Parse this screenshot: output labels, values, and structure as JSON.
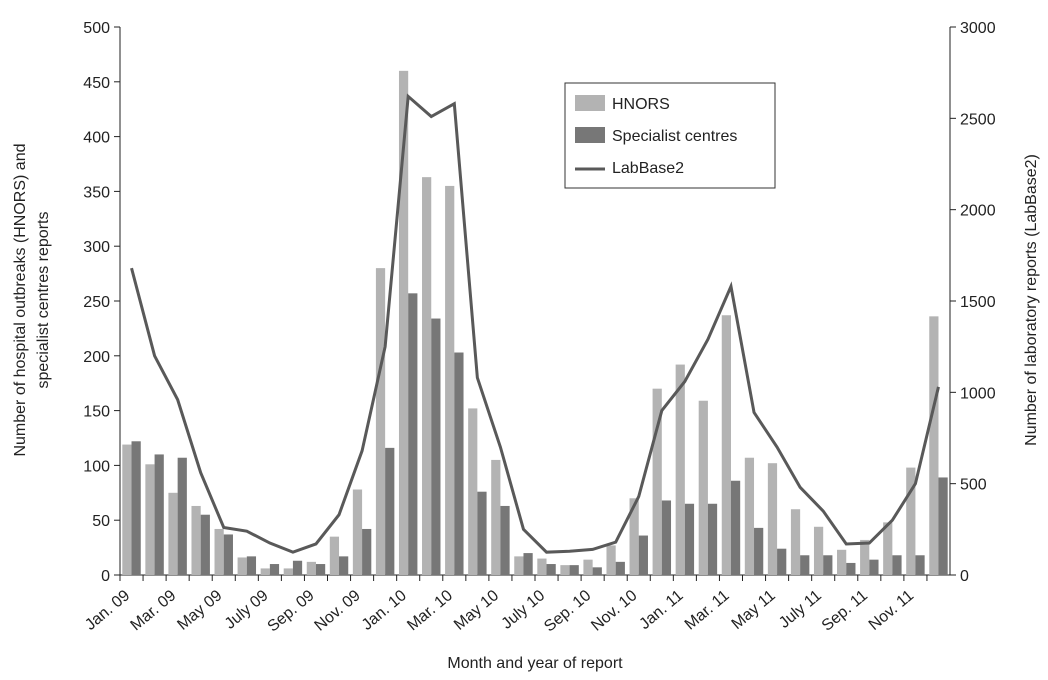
{
  "chart_data": {
    "type": "bar-line",
    "x_label": "Month and year of report",
    "y_label": [
      "Number of hospital outbreaks (HNORS) and",
      "specialist centres reports"
    ],
    "y2_label": "Number of laboratory reports (LabBase2)",
    "categories": [
      "Jan. 09",
      null,
      "Mar. 09",
      null,
      "May 09",
      null,
      "July 09",
      null,
      "Sep. 09",
      null,
      "Nov. 09",
      null,
      "Jan. 10",
      null,
      "Mar. 10",
      null,
      "May 10",
      null,
      "July 10",
      null,
      "Sep. 10",
      null,
      "Nov. 10",
      null,
      "Jan. 11",
      null,
      "Mar. 11",
      null,
      "May 11",
      null,
      "July 11",
      null,
      "Sep. 11",
      null,
      "Nov. 11",
      null
    ],
    "ylim": [
      0,
      500
    ],
    "yticks": [
      0,
      50,
      100,
      150,
      200,
      250,
      300,
      350,
      400,
      450,
      500
    ],
    "y2lim": [
      0,
      3000
    ],
    "y2ticks": [
      0,
      500,
      1000,
      1500,
      2000,
      2500,
      3000
    ],
    "series": [
      {
        "name": "HNORS",
        "kind": "bar",
        "color": "#b3b3b3",
        "values": [
          119,
          101,
          75,
          63,
          42,
          16,
          6,
          6,
          12,
          35,
          78,
          280,
          460,
          363,
          355,
          152,
          105,
          17,
          15,
          9,
          14,
          27,
          70,
          170,
          192,
          159,
          237,
          107,
          102,
          60,
          44,
          23,
          32,
          48,
          98,
          236
        ]
      },
      {
        "name": "Specialist centres",
        "kind": "bar",
        "color": "#777777",
        "values": [
          122,
          110,
          107,
          55,
          37,
          17,
          10,
          13,
          10,
          17,
          42,
          116,
          257,
          234,
          203,
          76,
          63,
          20,
          10,
          9,
          7,
          12,
          36,
          68,
          65,
          65,
          86,
          43,
          24,
          18,
          18,
          11,
          14,
          18,
          18,
          89
        ]
      },
      {
        "name": "LabBase2",
        "kind": "line",
        "axis": "y2",
        "color": "#595959",
        "values": [
          1680,
          1200,
          960,
          560,
          260,
          240,
          175,
          125,
          170,
          330,
          680,
          1250,
          2620,
          2510,
          2580,
          1080,
          700,
          250,
          125,
          130,
          140,
          180,
          430,
          900,
          1060,
          1290,
          1580,
          890,
          700,
          480,
          350,
          170,
          175,
          300,
          500,
          1030
        ]
      }
    ]
  }
}
